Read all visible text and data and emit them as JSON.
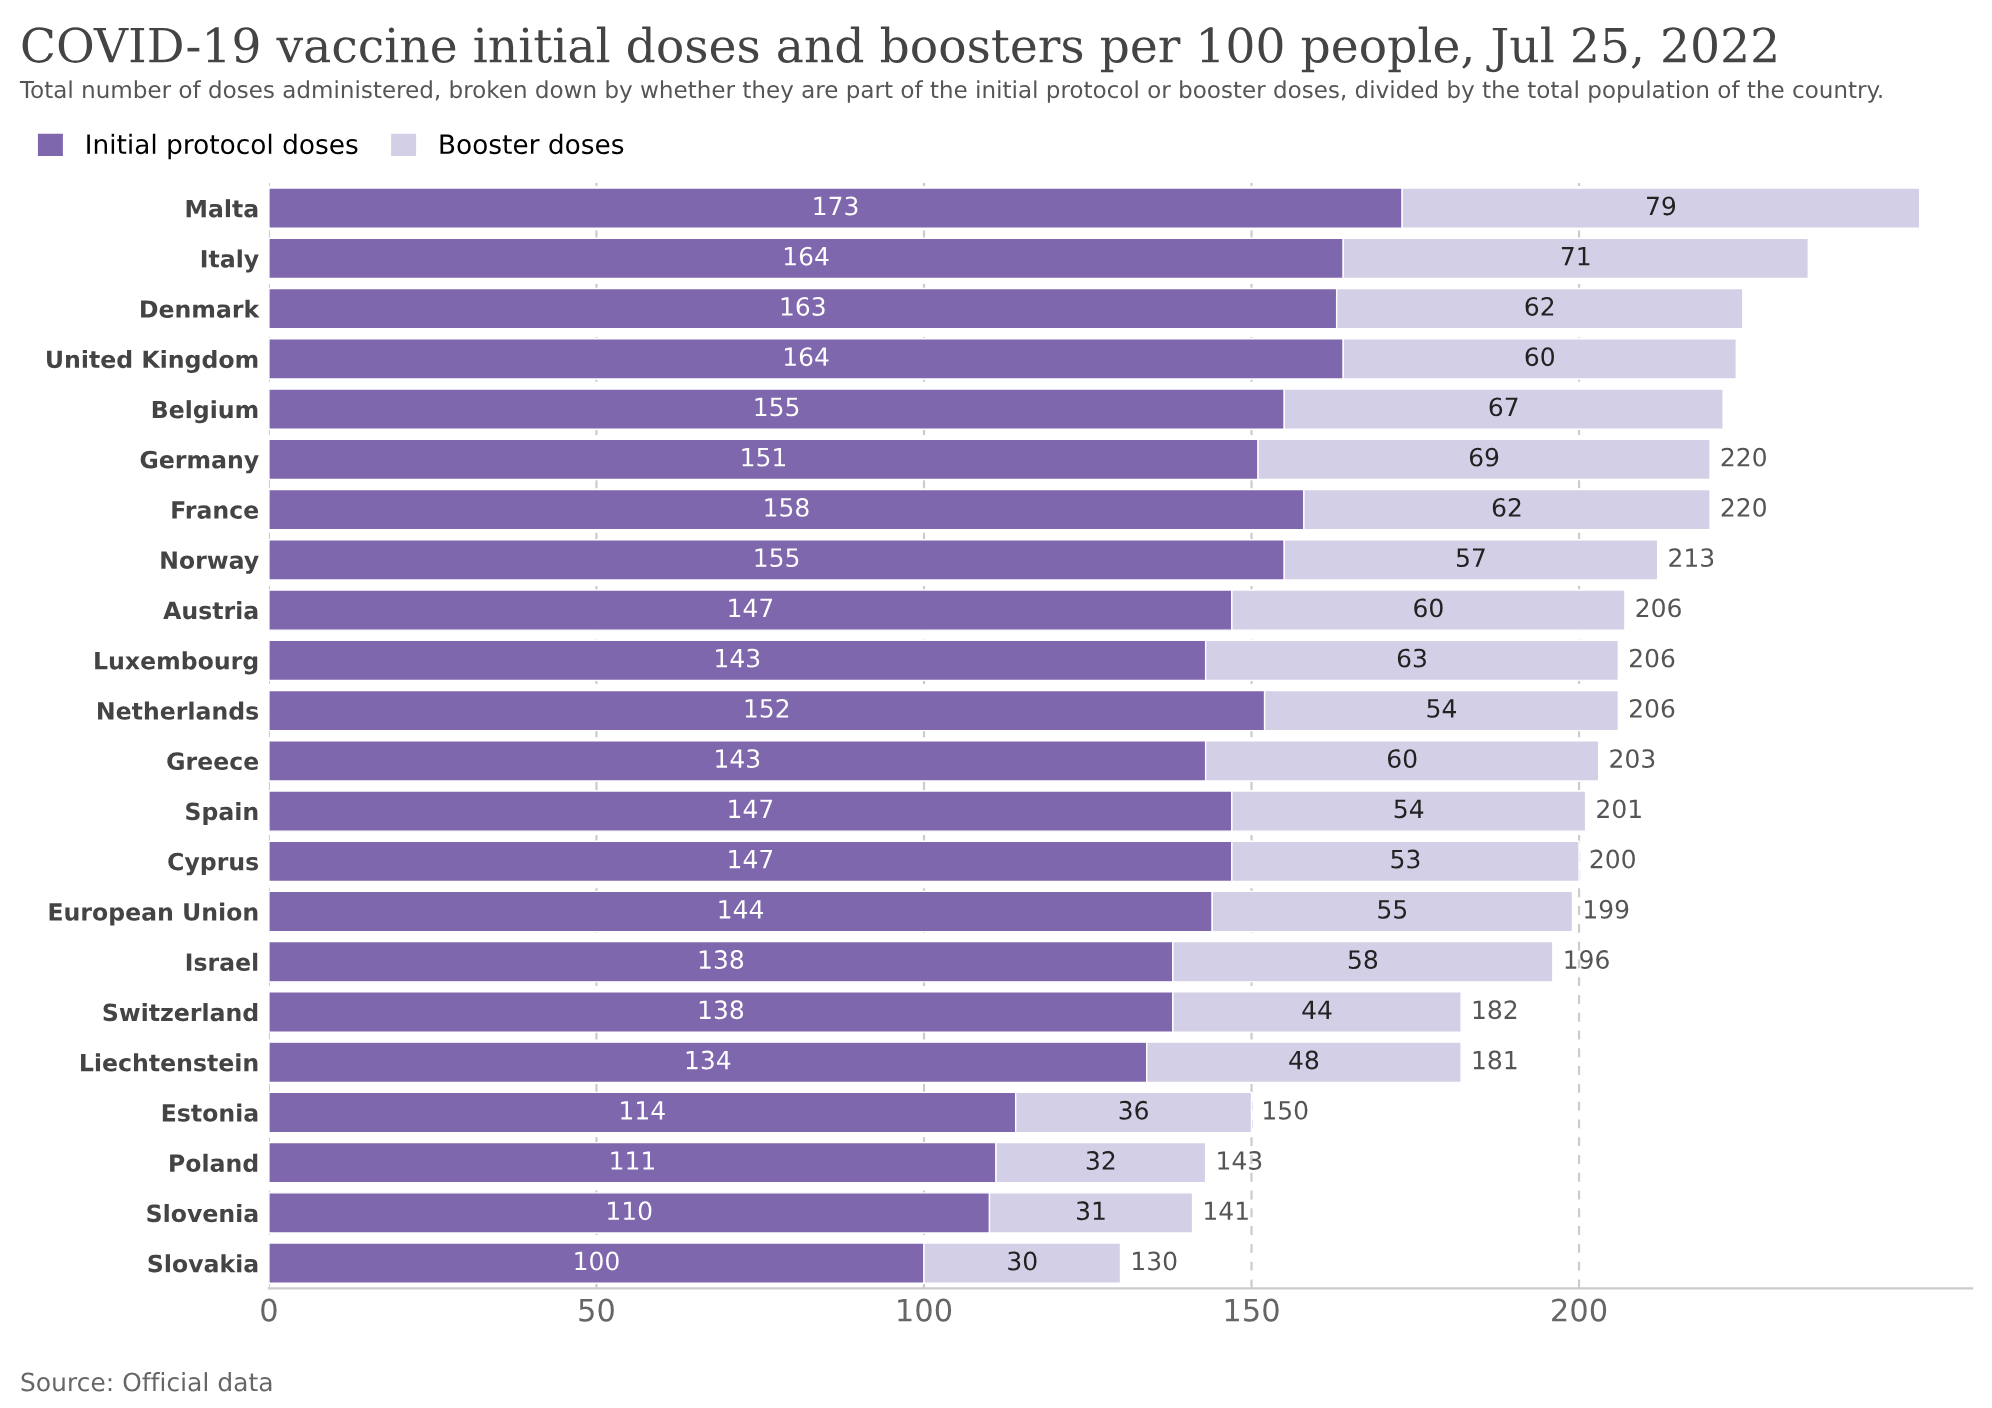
{
  "chart_data": {
    "type": "bar",
    "orientation": "horizontal",
    "stacked": true,
    "title": "COVID-19 vaccine initial doses and boosters per 100 people, Jul 25, 2022",
    "subtitle": "Total number of doses administered, broken down by whether they are part of the initial protocol or booster doses, divided by the total population of the country.",
    "annotations": [
      "Source: Official data"
    ],
    "categories": [
      "Malta",
      "Italy",
      "Denmark",
      "United Kingdom",
      "Belgium",
      "Germany",
      "France",
      "Norway",
      "Austria",
      "Luxembourg",
      "Netherlands",
      "Greece",
      "Spain",
      "Cyprus",
      "European Union",
      "Israel",
      "Switzerland",
      "Liechtenstein",
      "Estonia",
      "Poland",
      "Slovenia",
      "Slovakia"
    ],
    "series": [
      {
        "name": "Initial protocol doses",
        "color": "#7f67ae",
        "values": [
          173,
          164,
          163,
          164,
          155,
          151,
          158,
          155,
          147,
          143,
          152,
          143,
          147,
          147,
          144,
          138,
          138,
          134,
          114,
          111,
          110,
          100
        ]
      },
      {
        "name": "Booster doses",
        "color": "#d3cfe6",
        "values": [
          79,
          71,
          62,
          60,
          67,
          69,
          62,
          57,
          60,
          63,
          54,
          60,
          54,
          53,
          55,
          58,
          44,
          48,
          36,
          32,
          31,
          30
        ]
      }
    ],
    "totals": [
      null,
      null,
      null,
      null,
      null,
      "220",
      "220",
      "213",
      "206",
      "206",
      "206",
      "203",
      "201",
      "200",
      "199",
      "196",
      "182",
      "181",
      "150",
      "143",
      "141",
      "130"
    ],
    "data_labels": true,
    "xlim": [
      0,
      260
    ],
    "xticks": [
      0,
      50,
      100,
      150,
      200
    ],
    "grid": "x",
    "legend": "top left"
  }
}
